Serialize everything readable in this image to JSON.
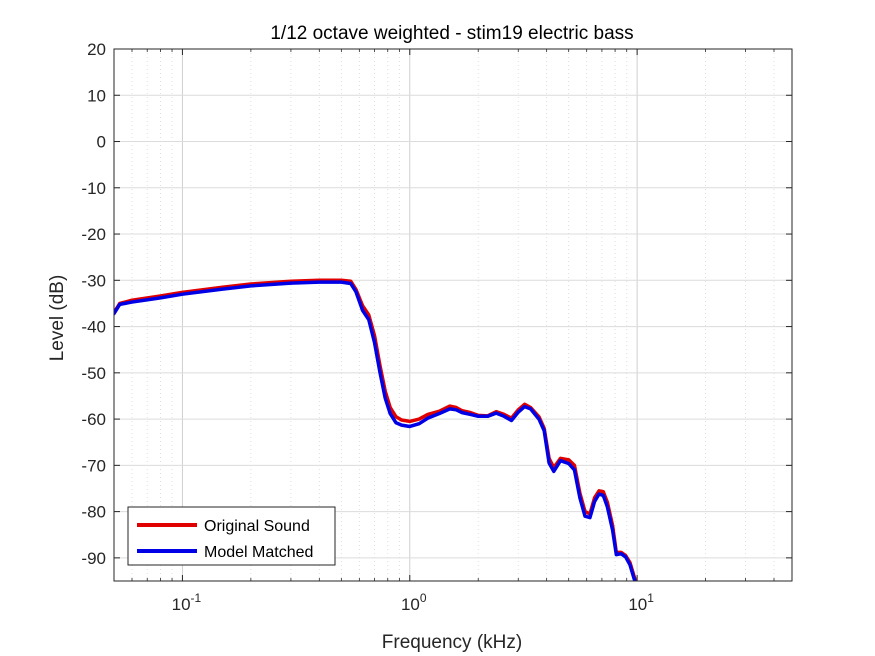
{
  "chart_data": {
    "type": "line",
    "title": "1/12 octave weighted - stim19 electric bass",
    "xlabel": "Frequency (kHz)",
    "ylabel": "Level (dB)",
    "xscale": "log",
    "xlim": [
      0.05,
      48
    ],
    "ylim": [
      -95,
      20
    ],
    "x_ticks": [
      {
        "base": "10",
        "exp": "-1",
        "value": 0.1
      },
      {
        "base": "10",
        "exp": "0",
        "value": 1
      },
      {
        "base": "10",
        "exp": "1",
        "value": 10
      }
    ],
    "y_ticks": [
      "20",
      "10",
      "0",
      "-10",
      "-20",
      "-30",
      "-40",
      "-50",
      "-60",
      "-70",
      "-80",
      "-90"
    ],
    "grid": true,
    "minor_grid": true,
    "legend_position": "bottom-left",
    "series": [
      {
        "name": "Original Sound",
        "color": "#e00000",
        "x": [
          0.05,
          0.053,
          0.06,
          0.08,
          0.1,
          0.15,
          0.2,
          0.3,
          0.4,
          0.5,
          0.55,
          0.58,
          0.62,
          0.66,
          0.7,
          0.74,
          0.78,
          0.82,
          0.87,
          0.92,
          1.0,
          1.1,
          1.2,
          1.35,
          1.5,
          1.6,
          1.7,
          1.85,
          2.0,
          2.2,
          2.4,
          2.6,
          2.8,
          3.0,
          3.2,
          3.4,
          3.7,
          3.9,
          4.1,
          4.3,
          4.6,
          5.0,
          5.3,
          5.6,
          5.9,
          6.2,
          6.5,
          6.8,
          7.1,
          7.4,
          7.8,
          8.1,
          8.5,
          8.9,
          9.3,
          9.7,
          10.0,
          10.3,
          10.6
        ],
        "y": [
          -37,
          -35,
          -34.3,
          -33.4,
          -32.6,
          -31.5,
          -30.8,
          -30.2,
          -30.0,
          -30.0,
          -30.2,
          -32.0,
          -35.5,
          -37.5,
          -42.0,
          -48.5,
          -54.0,
          -57.5,
          -59.5,
          -60.2,
          -60.5,
          -60.0,
          -59.0,
          -58.3,
          -57.2,
          -57.5,
          -58.2,
          -58.6,
          -59.2,
          -59.3,
          -58.4,
          -59.0,
          -59.8,
          -58.0,
          -56.8,
          -57.5,
          -59.5,
          -62.0,
          -68.5,
          -70.5,
          -68.5,
          -68.8,
          -70.0,
          -76.0,
          -80.0,
          -80.5,
          -77.0,
          -75.5,
          -75.7,
          -78.0,
          -83.0,
          -88.8,
          -88.8,
          -89.5,
          -91.0,
          -94.0,
          -96.0,
          -98.0,
          -100.0
        ]
      },
      {
        "name": "Model Matched",
        "color": "#0000e6",
        "x": [
          0.05,
          0.053,
          0.06,
          0.08,
          0.1,
          0.15,
          0.2,
          0.3,
          0.4,
          0.5,
          0.55,
          0.58,
          0.62,
          0.66,
          0.7,
          0.74,
          0.78,
          0.82,
          0.87,
          0.92,
          1.0,
          1.1,
          1.2,
          1.35,
          1.5,
          1.6,
          1.7,
          1.85,
          2.0,
          2.2,
          2.4,
          2.6,
          2.8,
          3.0,
          3.2,
          3.4,
          3.7,
          3.9,
          4.1,
          4.3,
          4.6,
          5.0,
          5.3,
          5.6,
          5.9,
          6.2,
          6.5,
          6.8,
          7.1,
          7.4,
          7.8,
          8.1,
          8.5,
          8.9,
          9.3,
          9.7,
          10.0,
          10.3,
          10.6
        ],
        "y": [
          -37.2,
          -35.2,
          -34.7,
          -33.8,
          -33.0,
          -31.9,
          -31.2,
          -30.6,
          -30.4,
          -30.4,
          -30.7,
          -32.5,
          -36.5,
          -38.5,
          -43.5,
          -50.0,
          -55.5,
          -58.8,
          -60.8,
          -61.3,
          -61.6,
          -61.0,
          -59.8,
          -58.8,
          -57.8,
          -58.0,
          -58.6,
          -59.0,
          -59.4,
          -59.4,
          -58.7,
          -59.4,
          -60.3,
          -58.5,
          -57.3,
          -57.8,
          -60.0,
          -62.5,
          -69.5,
          -71.3,
          -69.0,
          -69.6,
          -71.0,
          -77.0,
          -81.0,
          -81.3,
          -77.8,
          -76.2,
          -76.5,
          -79.0,
          -84.0,
          -89.3,
          -89.1,
          -89.8,
          -91.5,
          -94.5,
          -96.5,
          -98.5,
          -100.0
        ]
      }
    ]
  }
}
